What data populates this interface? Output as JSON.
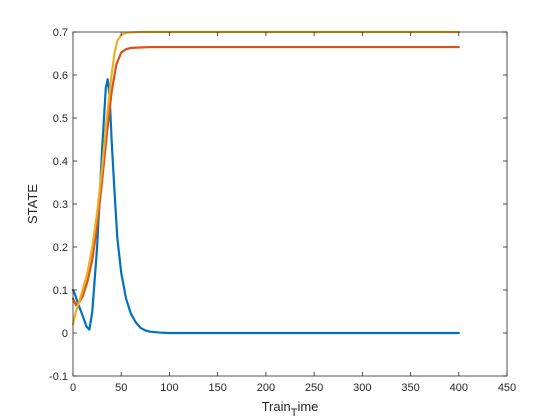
{
  "chart_data": {
    "type": "line",
    "title": "",
    "xlabel": "Train_time",
    "xlabel_display": [
      "Train",
      "T",
      "ime"
    ],
    "ylabel": "STATE",
    "xlim": [
      0,
      450
    ],
    "ylim": [
      -0.1,
      0.7
    ],
    "xticks": [
      0,
      50,
      100,
      150,
      200,
      250,
      300,
      350,
      400,
      450
    ],
    "yticks": [
      -0.1,
      0,
      0.1,
      0.2,
      0.3,
      0.4,
      0.5,
      0.6,
      0.7
    ],
    "xtick_labels": [
      "0",
      "50",
      "100",
      "150",
      "200",
      "250",
      "300",
      "350",
      "400",
      "450"
    ],
    "ytick_labels": [
      "-0.1",
      "0",
      "0.1",
      "0.2",
      "0.3",
      "0.4",
      "0.5",
      "0.6",
      "0.7"
    ],
    "grid": false,
    "legend": "none",
    "series": [
      {
        "color": "#0072BD",
        "x": [
          0,
          2,
          5,
          10,
          14,
          17,
          20,
          25,
          30,
          34,
          36,
          38,
          40,
          43,
          46,
          50,
          55,
          60,
          65,
          70,
          75,
          80,
          90,
          100,
          150,
          200,
          300,
          400
        ],
        "y": [
          0.1,
          0.09,
          0.07,
          0.04,
          0.015,
          0.008,
          0.05,
          0.2,
          0.42,
          0.57,
          0.59,
          0.55,
          0.45,
          0.33,
          0.22,
          0.14,
          0.08,
          0.045,
          0.025,
          0.012,
          0.006,
          0.003,
          0.001,
          0.0,
          0.0,
          0.0,
          0.0,
          0.0
        ]
      },
      {
        "color": "#D95319",
        "x": [
          0,
          3,
          6,
          10,
          15,
          20,
          25,
          30,
          35,
          40,
          45,
          50,
          55,
          60,
          70,
          80,
          100,
          150,
          200,
          300,
          400
        ],
        "y": [
          0.08,
          0.065,
          0.07,
          0.085,
          0.12,
          0.17,
          0.25,
          0.35,
          0.46,
          0.56,
          0.625,
          0.652,
          0.66,
          0.663,
          0.664,
          0.665,
          0.665,
          0.665,
          0.665,
          0.665,
          0.665
        ]
      },
      {
        "color": "#EDB120",
        "x": [
          0,
          3,
          6,
          10,
          15,
          20,
          25,
          30,
          35,
          40,
          43,
          46,
          50,
          55,
          60,
          70,
          80,
          100,
          150,
          200,
          300,
          400
        ],
        "y": [
          0.02,
          0.05,
          0.07,
          0.1,
          0.14,
          0.2,
          0.28,
          0.38,
          0.5,
          0.6,
          0.65,
          0.68,
          0.693,
          0.698,
          0.699,
          0.7,
          0.7,
          0.7,
          0.7,
          0.7,
          0.7,
          0.7
        ]
      }
    ]
  }
}
